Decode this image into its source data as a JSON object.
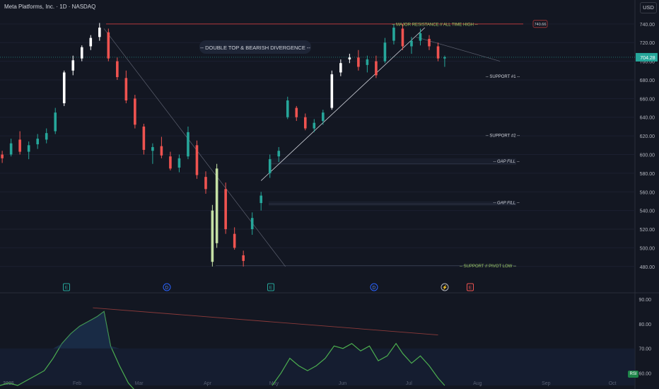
{
  "header": {
    "symbol_title": "Meta Platforms, Inc. · 1D · NASDAQ",
    "currency": "USD"
  },
  "price_axis": {
    "ticks": [
      480,
      500,
      520,
      540,
      560,
      580,
      600,
      620,
      640,
      660,
      680,
      700,
      720,
      740
    ],
    "last_price": 704.28,
    "ath": 740.66
  },
  "time_axis": [
    "2025",
    "Feb",
    "Mar",
    "Apr",
    "May",
    "Jun",
    "Jul",
    "Aug",
    "Sep",
    "Oct"
  ],
  "annotations": {
    "headline": "-- DOUBLE TOP & BEARISH  DIVERGENCE  --",
    "resistance": "-- MAJOR RESISTANCE  //  ALL TIME HIGH  --",
    "support1": "-- SUPPORT #1 --",
    "support2": "-- SUPPORT #2 --",
    "gap_fill_upper": "-- GAP FILL --",
    "gap_fill_lower": "-- GAP FILL --",
    "support_pivot": "--  SUPPORT  //  PIVOT LOW  --"
  },
  "event_markers": [
    {
      "label": "E",
      "kind": "earnings"
    },
    {
      "label": "D",
      "kind": "dividend"
    },
    {
      "label": "E",
      "kind": "earnings"
    },
    {
      "label": "D",
      "kind": "dividend"
    },
    {
      "label": "⚡",
      "kind": "split"
    },
    {
      "label": "E",
      "kind": "earnings-upcoming"
    }
  ],
  "rsi_panel": {
    "ticks": [
      60,
      70,
      80,
      90
    ],
    "badge": "RSI"
  },
  "colors": {
    "bull": "#26a69a",
    "bear": "#ef5350",
    "bg": "#131722",
    "label_green": "#9ccc65",
    "white": "#ffffff",
    "lime": "#c5e1a5",
    "rsi": "#4caf50",
    "resistance": "#b2383a"
  },
  "chart_data": {
    "type": "candlestick",
    "title": "Meta Platforms, Inc. · 1D · NASDAQ",
    "ylim": [
      470,
      752
    ],
    "x_range": [
      "2025-01-01",
      "2025-10-15"
    ],
    "candles": [
      {
        "date": "2025-01-02",
        "open": 600,
        "high": 604,
        "low": 591,
        "close": 596
      },
      {
        "date": "2025-01-06",
        "open": 600,
        "high": 617,
        "low": 598,
        "close": 612
      },
      {
        "date": "2025-01-10",
        "open": 616,
        "high": 625,
        "low": 600,
        "close": 603
      },
      {
        "date": "2025-01-14",
        "open": 603,
        "high": 614,
        "low": 595,
        "close": 610
      },
      {
        "date": "2025-01-18",
        "open": 611,
        "high": 622,
        "low": 606,
        "close": 617
      },
      {
        "date": "2025-01-22",
        "open": 616,
        "high": 628,
        "low": 612,
        "close": 623
      },
      {
        "date": "2025-01-26",
        "open": 625,
        "high": 650,
        "low": 622,
        "close": 645
      },
      {
        "date": "2025-01-30",
        "open": 655,
        "high": 690,
        "low": 652,
        "close": 688
      },
      {
        "date": "2025-02-03",
        "open": 690,
        "high": 706,
        "low": 685,
        "close": 701
      },
      {
        "date": "2025-02-07",
        "open": 703,
        "high": 717,
        "low": 700,
        "close": 715
      },
      {
        "date": "2025-02-11",
        "open": 716,
        "high": 728,
        "low": 712,
        "close": 725
      },
      {
        "date": "2025-02-15",
        "open": 726,
        "high": 741,
        "low": 722,
        "close": 736
      },
      {
        "date": "2025-02-19",
        "open": 731,
        "high": 735,
        "low": 700,
        "close": 703
      },
      {
        "date": "2025-02-23",
        "open": 700,
        "high": 704,
        "low": 680,
        "close": 683
      },
      {
        "date": "2025-02-27",
        "open": 682,
        "high": 690,
        "low": 655,
        "close": 658
      },
      {
        "date": "2025-03-03",
        "open": 660,
        "high": 664,
        "low": 628,
        "close": 632
      },
      {
        "date": "2025-03-07",
        "open": 630,
        "high": 633,
        "low": 600,
        "close": 605
      },
      {
        "date": "2025-03-11",
        "open": 604,
        "high": 612,
        "low": 590,
        "close": 608
      },
      {
        "date": "2025-03-15",
        "open": 609,
        "high": 619,
        "low": 596,
        "close": 599
      },
      {
        "date": "2025-03-19",
        "open": 598,
        "high": 603,
        "low": 583,
        "close": 585
      },
      {
        "date": "2025-03-23",
        "open": 586,
        "high": 600,
        "low": 581,
        "close": 596
      },
      {
        "date": "2025-03-27",
        "open": 598,
        "high": 630,
        "low": 595,
        "close": 624
      },
      {
        "date": "2025-03-31",
        "open": 610,
        "high": 615,
        "low": 574,
        "close": 578
      },
      {
        "date": "2025-04-04",
        "open": 576,
        "high": 582,
        "low": 558,
        "close": 563
      },
      {
        "date": "2025-04-07",
        "open": 540,
        "high": 546,
        "low": 480,
        "close": 485
      },
      {
        "date": "2025-04-09",
        "open": 505,
        "high": 590,
        "low": 500,
        "close": 585
      },
      {
        "date": "2025-04-13",
        "open": 563,
        "high": 570,
        "low": 515,
        "close": 520
      },
      {
        "date": "2025-04-17",
        "open": 515,
        "high": 522,
        "low": 498,
        "close": 500
      },
      {
        "date": "2025-04-21",
        "open": 492,
        "high": 497,
        "low": 480,
        "close": 486
      },
      {
        "date": "2025-04-25",
        "open": 520,
        "high": 538,
        "low": 514,
        "close": 532
      },
      {
        "date": "2025-04-29",
        "open": 548,
        "high": 560,
        "low": 540,
        "close": 556
      },
      {
        "date": "2025-05-03",
        "open": 580,
        "high": 600,
        "low": 575,
        "close": 595
      },
      {
        "date": "2025-05-07",
        "open": 598,
        "high": 608,
        "low": 592,
        "close": 604
      },
      {
        "date": "2025-05-11",
        "open": 640,
        "high": 662,
        "low": 638,
        "close": 658
      },
      {
        "date": "2025-05-15",
        "open": 650,
        "high": 652,
        "low": 636,
        "close": 640
      },
      {
        "date": "2025-05-19",
        "open": 640,
        "high": 644,
        "low": 626,
        "close": 628
      },
      {
        "date": "2025-05-23",
        "open": 628,
        "high": 638,
        "low": 624,
        "close": 634
      },
      {
        "date": "2025-05-27",
        "open": 636,
        "high": 648,
        "low": 632,
        "close": 645
      },
      {
        "date": "2025-05-31",
        "open": 650,
        "high": 690,
        "low": 648,
        "close": 686
      },
      {
        "date": "2025-06-04",
        "open": 688,
        "high": 702,
        "low": 684,
        "close": 698
      },
      {
        "date": "2025-06-08",
        "open": 702,
        "high": 708,
        "low": 698,
        "close": 704
      },
      {
        "date": "2025-06-12",
        "open": 704,
        "high": 712,
        "low": 690,
        "close": 694
      },
      {
        "date": "2025-06-16",
        "open": 696,
        "high": 706,
        "low": 688,
        "close": 702
      },
      {
        "date": "2025-06-20",
        "open": 700,
        "high": 706,
        "low": 682,
        "close": 685
      },
      {
        "date": "2025-06-24",
        "open": 700,
        "high": 725,
        "low": 698,
        "close": 720
      },
      {
        "date": "2025-06-28",
        "open": 722,
        "high": 740,
        "low": 718,
        "close": 736
      },
      {
        "date": "2025-07-02",
        "open": 735,
        "high": 740,
        "low": 712,
        "close": 716
      },
      {
        "date": "2025-07-06",
        "open": 716,
        "high": 726,
        "low": 708,
        "close": 722
      },
      {
        "date": "2025-07-10",
        "open": 722,
        "high": 735,
        "low": 717,
        "close": 730
      },
      {
        "date": "2025-07-14",
        "open": 724,
        "high": 728,
        "low": 712,
        "close": 716
      },
      {
        "date": "2025-07-18",
        "open": 716,
        "high": 720,
        "low": 700,
        "close": 703
      },
      {
        "date": "2025-07-21",
        "open": 703,
        "high": 706,
        "low": 694,
        "close": 704.28
      }
    ]
  },
  "rsi_data": {
    "ylim": [
      55,
      92
    ],
    "overbought": 70,
    "points": [
      [
        "2025-01-01",
        55
      ],
      [
        "2025-01-05",
        56
      ],
      [
        "2025-01-09",
        55
      ],
      [
        "2025-01-13",
        57
      ],
      [
        "2025-01-17",
        59
      ],
      [
        "2025-01-21",
        61
      ],
      [
        "2025-01-25",
        66
      ],
      [
        "2025-01-29",
        72
      ],
      [
        "2025-02-02",
        76
      ],
      [
        "2025-02-06",
        79
      ],
      [
        "2025-02-10",
        81
      ],
      [
        "2025-02-14",
        83
      ],
      [
        "2025-02-17",
        85
      ],
      [
        "2025-02-20",
        71
      ],
      [
        "2025-02-24",
        63
      ],
      [
        "2025-02-28",
        56
      ],
      [
        "2025-03-04",
        52
      ],
      [
        "2025-05-04",
        55
      ],
      [
        "2025-05-08",
        60
      ],
      [
        "2025-05-12",
        66
      ],
      [
        "2025-05-16",
        63
      ],
      [
        "2025-05-20",
        61
      ],
      [
        "2025-05-24",
        63
      ],
      [
        "2025-05-28",
        66
      ],
      [
        "2025-06-01",
        71
      ],
      [
        "2025-06-05",
        70
      ],
      [
        "2025-06-09",
        72
      ],
      [
        "2025-06-13",
        69
      ],
      [
        "2025-06-17",
        71
      ],
      [
        "2025-06-21",
        65
      ],
      [
        "2025-06-25",
        67
      ],
      [
        "2025-06-29",
        72
      ],
      [
        "2025-07-02",
        68
      ],
      [
        "2025-07-06",
        64
      ],
      [
        "2025-07-10",
        67
      ],
      [
        "2025-07-14",
        63
      ],
      [
        "2025-07-18",
        58
      ],
      [
        "2025-07-21",
        55
      ]
    ]
  }
}
